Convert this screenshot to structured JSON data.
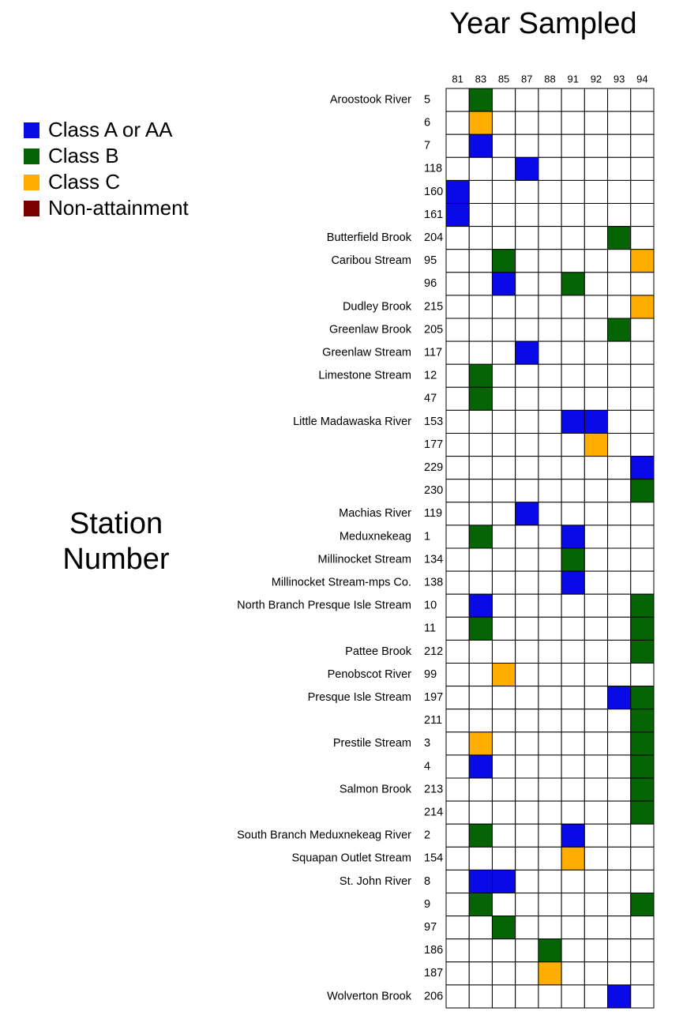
{
  "title": "Year Sampled",
  "ylabel": [
    "Station",
    "Number"
  ],
  "legend": [
    {
      "label": "Class A or AA",
      "color": "#0a0ae8"
    },
    {
      "label": "Class B",
      "color": "#056505"
    },
    {
      "label": "Class C",
      "color": "#ffae00"
    },
    {
      "label": "Non-attainment",
      "color": "#7a0000"
    }
  ],
  "years": [
    "81",
    "83",
    "85",
    "87",
    "88",
    "91",
    "92",
    "93",
    "94"
  ],
  "rows": [
    {
      "river": "Aroostook River",
      "station": "5",
      "cells": [
        null,
        1,
        null,
        null,
        null,
        null,
        null,
        null,
        null
      ]
    },
    {
      "station": "6",
      "cells": [
        null,
        2,
        null,
        null,
        null,
        null,
        null,
        null,
        null
      ]
    },
    {
      "station": "7",
      "cells": [
        null,
        0,
        null,
        null,
        null,
        null,
        null,
        null,
        null
      ]
    },
    {
      "station": "118",
      "cells": [
        null,
        null,
        null,
        0,
        null,
        null,
        null,
        null,
        null
      ]
    },
    {
      "station": "160",
      "cells": [
        0,
        null,
        null,
        null,
        null,
        null,
        null,
        null,
        null
      ]
    },
    {
      "station": "161",
      "cells": [
        0,
        null,
        null,
        null,
        null,
        null,
        null,
        null,
        null
      ]
    },
    {
      "river": "Butterfield Brook",
      "station": "204",
      "cells": [
        null,
        null,
        null,
        null,
        null,
        null,
        null,
        1,
        null
      ]
    },
    {
      "river": "Caribou Stream",
      "station": "95",
      "cells": [
        null,
        null,
        1,
        null,
        null,
        null,
        null,
        null,
        2
      ]
    },
    {
      "station": "96",
      "cells": [
        null,
        null,
        0,
        null,
        null,
        1,
        null,
        null,
        null
      ]
    },
    {
      "river": "Dudley Brook",
      "station": "215",
      "cells": [
        null,
        null,
        null,
        null,
        null,
        null,
        null,
        null,
        2
      ]
    },
    {
      "river": "Greenlaw Brook",
      "station": "205",
      "cells": [
        null,
        null,
        null,
        null,
        null,
        null,
        null,
        1,
        null
      ]
    },
    {
      "river": "Greenlaw Stream",
      "station": "117",
      "cells": [
        null,
        null,
        null,
        0,
        null,
        null,
        null,
        null,
        null
      ]
    },
    {
      "river": "Limestone Stream",
      "station": "12",
      "cells": [
        null,
        1,
        null,
        null,
        null,
        null,
        null,
        null,
        null
      ]
    },
    {
      "station": "47",
      "cells": [
        null,
        1,
        null,
        null,
        null,
        null,
        null,
        null,
        null
      ]
    },
    {
      "river": "Little Madawaska River",
      "station": "153",
      "cells": [
        null,
        null,
        null,
        null,
        null,
        0,
        0,
        null,
        null
      ]
    },
    {
      "station": "177",
      "cells": [
        null,
        null,
        null,
        null,
        null,
        null,
        2,
        null,
        null
      ]
    },
    {
      "station": "229",
      "cells": [
        null,
        null,
        null,
        null,
        null,
        null,
        null,
        null,
        0
      ]
    },
    {
      "station": "230",
      "cells": [
        null,
        null,
        null,
        null,
        null,
        null,
        null,
        null,
        1
      ]
    },
    {
      "river": "Machias River",
      "station": "119",
      "cells": [
        null,
        null,
        null,
        0,
        null,
        null,
        null,
        null,
        null
      ]
    },
    {
      "river": "Meduxnekeag",
      "station": "1",
      "cells": [
        null,
        1,
        null,
        null,
        null,
        0,
        null,
        null,
        null
      ]
    },
    {
      "river": "Millinocket Stream",
      "station": "134",
      "cells": [
        null,
        null,
        null,
        null,
        null,
        1,
        null,
        null,
        null
      ]
    },
    {
      "river": "Millinocket Stream-mps Co.",
      "station": "138",
      "cells": [
        null,
        null,
        null,
        null,
        null,
        0,
        null,
        null,
        null
      ]
    },
    {
      "river": "North Branch Presque Isle Stream",
      "station": "10",
      "cells": [
        null,
        0,
        null,
        null,
        null,
        null,
        null,
        null,
        1
      ]
    },
    {
      "station": "11",
      "cells": [
        null,
        1,
        null,
        null,
        null,
        null,
        null,
        null,
        1
      ]
    },
    {
      "river": "Pattee Brook",
      "station": "212",
      "cells": [
        null,
        null,
        null,
        null,
        null,
        null,
        null,
        null,
        1
      ]
    },
    {
      "river": "Penobscot River",
      "station": "99",
      "cells": [
        null,
        null,
        2,
        null,
        null,
        null,
        null,
        null,
        null
      ]
    },
    {
      "river": "Presque Isle Stream",
      "station": "197",
      "cells": [
        null,
        null,
        null,
        null,
        null,
        null,
        null,
        0,
        1
      ]
    },
    {
      "station": "211",
      "cells": [
        null,
        null,
        null,
        null,
        null,
        null,
        null,
        null,
        1
      ]
    },
    {
      "river": "Prestile Stream",
      "station": "3",
      "cells": [
        null,
        2,
        null,
        null,
        null,
        null,
        null,
        null,
        1
      ]
    },
    {
      "station": "4",
      "cells": [
        null,
        0,
        null,
        null,
        null,
        null,
        null,
        null,
        1
      ]
    },
    {
      "river": "Salmon Brook",
      "station": "213",
      "cells": [
        null,
        null,
        null,
        null,
        null,
        null,
        null,
        null,
        1
      ]
    },
    {
      "station": "214",
      "cells": [
        null,
        null,
        null,
        null,
        null,
        null,
        null,
        null,
        1
      ]
    },
    {
      "river": "South Branch Meduxnekeag River",
      "station": "2",
      "cells": [
        null,
        1,
        null,
        null,
        null,
        0,
        null,
        null,
        null
      ]
    },
    {
      "river": "Squapan Outlet Stream",
      "station": "154",
      "cells": [
        null,
        null,
        null,
        null,
        null,
        2,
        null,
        null,
        null
      ]
    },
    {
      "river": "St. John River",
      "station": "8",
      "cells": [
        null,
        0,
        0,
        null,
        null,
        null,
        null,
        null,
        null
      ]
    },
    {
      "station": "9",
      "cells": [
        null,
        1,
        null,
        null,
        null,
        null,
        null,
        null,
        1
      ]
    },
    {
      "station": "97",
      "cells": [
        null,
        null,
        1,
        null,
        null,
        null,
        null,
        null,
        null
      ]
    },
    {
      "station": "186",
      "cells": [
        null,
        null,
        null,
        null,
        1,
        null,
        null,
        null,
        null
      ]
    },
    {
      "station": "187",
      "cells": [
        null,
        null,
        null,
        null,
        2,
        null,
        null,
        null,
        null
      ]
    },
    {
      "river": "Wolverton Brook",
      "station": "206",
      "cells": [
        null,
        null,
        null,
        null,
        null,
        null,
        null,
        0,
        null
      ]
    }
  ]
}
